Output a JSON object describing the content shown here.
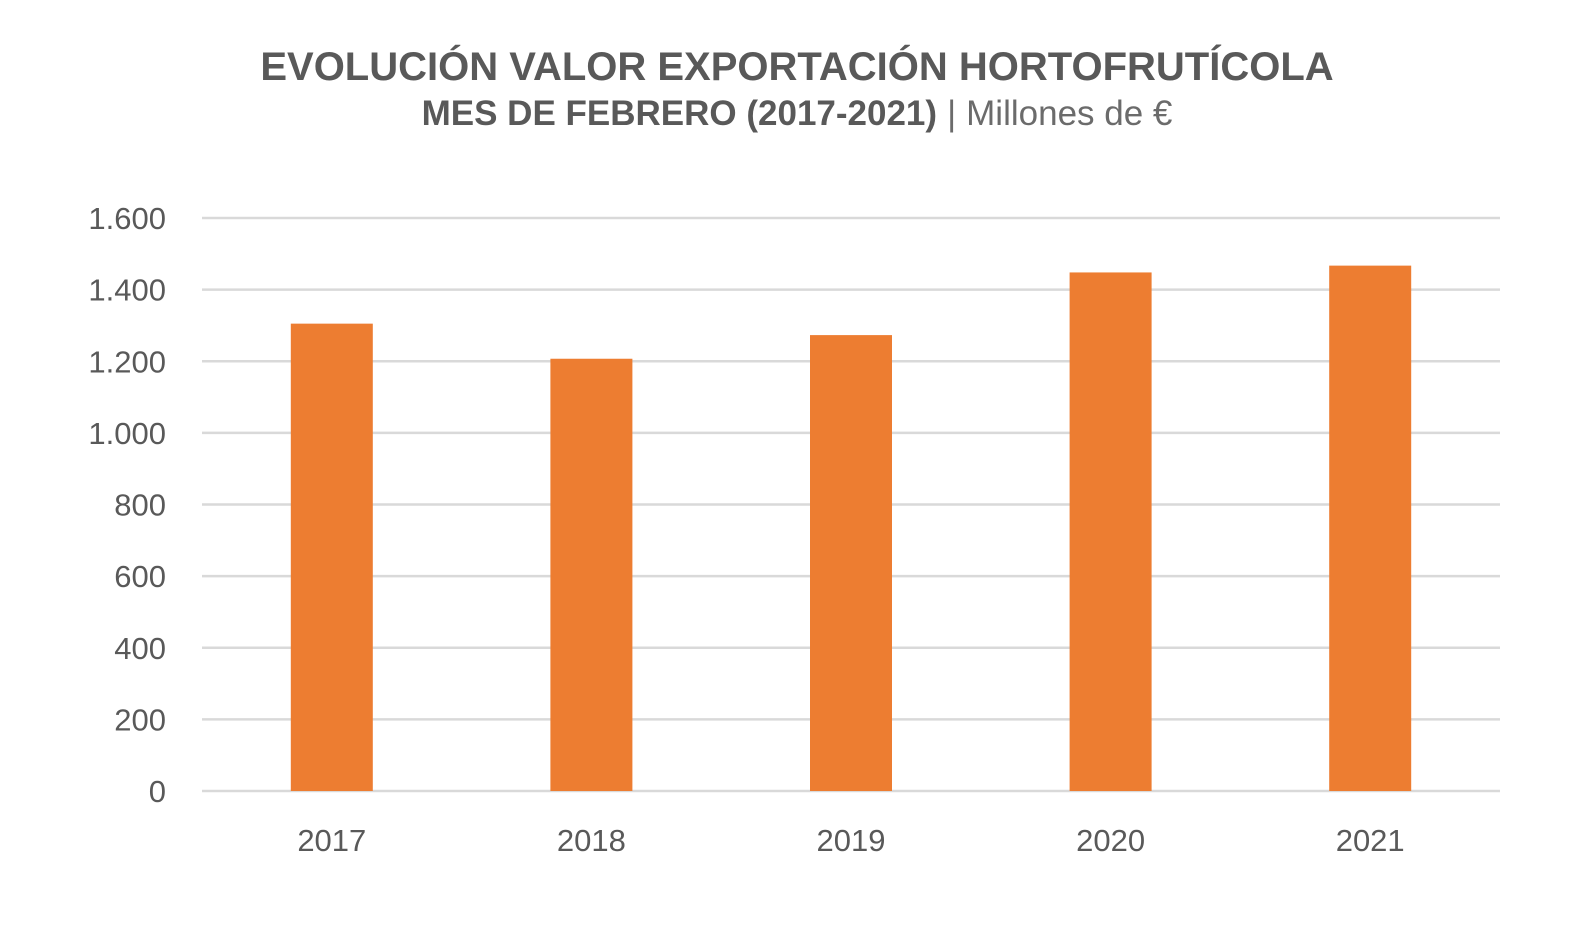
{
  "chart_data": {
    "type": "bar",
    "title": "EVOLUCIÓN VALOR EXPORTACIÓN HORTOFRUTÍCOLA",
    "subtitle": "MES DE FEBRERO (2017-2021)",
    "subtitle_separator": "|",
    "unit": "Millones de €",
    "categories": [
      "2017",
      "2018",
      "2019",
      "2020",
      "2021"
    ],
    "values": [
      1305,
      1207,
      1273,
      1448,
      1467
    ],
    "xlabel": "",
    "ylabel": "",
    "ylim": [
      0,
      1600
    ],
    "yticks": [
      0,
      200,
      400,
      600,
      800,
      1000,
      1200,
      1400,
      1600
    ],
    "ytick_labels": [
      "0",
      "200",
      "400",
      "600",
      "800",
      "1.000",
      "1.200",
      "1.400",
      "1.600"
    ],
    "grid": true,
    "legend": "none",
    "colors": {
      "bar": "#ED7D31",
      "grid": "#D9D9D9",
      "text": "#595959"
    }
  }
}
